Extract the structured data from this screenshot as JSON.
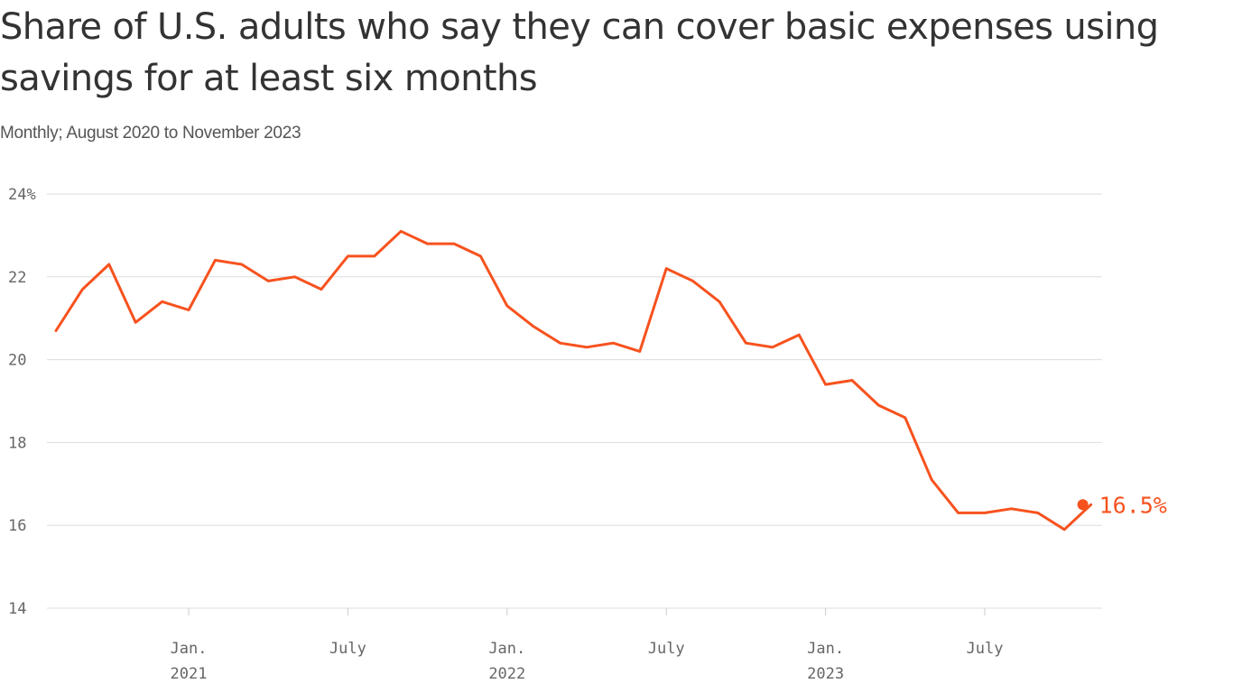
{
  "title": "Share of U.S. adults who say they can cover basic expenses using savings for at least six months",
  "subtitle": "Monthly; August 2020 to November 2023",
  "colors": {
    "line": "#f7521e",
    "grid": "#dddddd",
    "text": "#333333"
  },
  "chart_data": {
    "type": "line",
    "title": "Share of U.S. adults who say they can cover basic expenses using savings for at least six months",
    "subtitle": "Monthly; August 2020 to November 2023",
    "xlabel": "",
    "ylabel": "",
    "ylim": [
      14,
      24
    ],
    "y_ticks": [
      {
        "value": 24,
        "label": "24%"
      },
      {
        "value": 22,
        "label": "22"
      },
      {
        "value": 20,
        "label": "20"
      },
      {
        "value": 18,
        "label": "18"
      },
      {
        "value": 16,
        "label": "16"
      },
      {
        "value": 14,
        "label": "14"
      }
    ],
    "x_ticks": [
      {
        "month": "2021-01",
        "line1": "Jan.",
        "line2": "2021"
      },
      {
        "month": "2021-07",
        "line1": "July",
        "line2": ""
      },
      {
        "month": "2022-01",
        "line1": "Jan.",
        "line2": "2022"
      },
      {
        "month": "2022-07",
        "line1": "July",
        "line2": ""
      },
      {
        "month": "2023-01",
        "line1": "Jan.",
        "line2": "2023"
      },
      {
        "month": "2023-07",
        "line1": "July",
        "line2": ""
      }
    ],
    "grid": true,
    "x": [
      "2020-08",
      "2020-09",
      "2020-10",
      "2020-11",
      "2020-12",
      "2021-01",
      "2021-02",
      "2021-03",
      "2021-04",
      "2021-05",
      "2021-06",
      "2021-07",
      "2021-08",
      "2021-09",
      "2021-10",
      "2021-11",
      "2021-12",
      "2022-01",
      "2022-02",
      "2022-03",
      "2022-04",
      "2022-05",
      "2022-06",
      "2022-07",
      "2022-08",
      "2022-09",
      "2022-10",
      "2022-11",
      "2022-12",
      "2023-01",
      "2023-02",
      "2023-03",
      "2023-04",
      "2023-05",
      "2023-06",
      "2023-07",
      "2023-08",
      "2023-09",
      "2023-10",
      "2023-11"
    ],
    "series": [
      {
        "values": [
          20.7,
          21.7,
          22.3,
          20.9,
          21.4,
          21.2,
          22.4,
          22.3,
          21.9,
          22.0,
          21.7,
          22.5,
          22.5,
          23.1,
          22.8,
          22.8,
          22.5,
          21.3,
          20.8,
          20.4,
          20.3,
          20.4,
          20.2,
          22.2,
          21.9,
          21.4,
          20.4,
          20.3,
          20.6,
          19.4,
          19.5,
          18.9,
          18.6,
          17.1,
          16.3,
          16.3,
          16.4,
          16.3,
          15.9,
          16.5
        ]
      }
    ],
    "end_label": "16.5%"
  }
}
